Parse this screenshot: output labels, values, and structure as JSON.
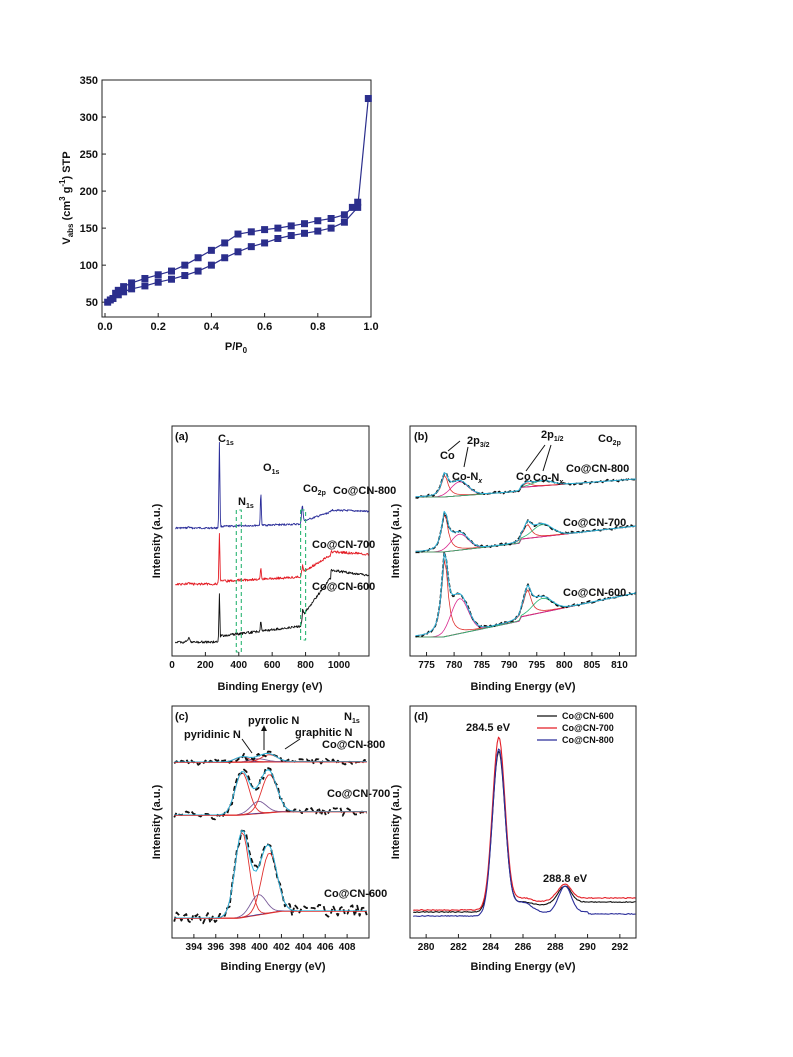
{
  "colors": {
    "bet": "#2b2e8c",
    "cn600": "#111111",
    "cn700": "#e41e26",
    "cn800": "#2b2e9a",
    "guide": "#2bb673",
    "fit_pink": "#d9288f",
    "fit_cyan": "#2ab0d8",
    "fit_red": "#e0312f"
  },
  "chart_data": [
    {
      "panel": "bet",
      "type": "line",
      "xlabel": "P/P",
      "xlabel_sub": "0",
      "ylabel": "V (cm g) STP",
      "ylabel_parts": {
        "v": "V",
        "abs": "abs",
        "open": " (cm",
        "sup3": "3",
        "g": " g",
        "supm1": "-1",
        "close": ") STP"
      },
      "xlim": [
        0,
        1.0
      ],
      "ylim": [
        30,
        350
      ],
      "xticks": [
        "0.0",
        "0.2",
        "0.4",
        "0.6",
        "0.8",
        "1.0"
      ],
      "yticks": [
        "50",
        "100",
        "150",
        "200",
        "250",
        "300",
        "350"
      ],
      "series": [
        {
          "x": [
            0.01,
            0.02,
            0.03,
            0.05,
            0.07,
            0.1,
            0.15,
            0.2,
            0.25,
            0.3,
            0.35,
            0.4,
            0.45,
            0.5,
            0.55,
            0.6,
            0.65,
            0.7,
            0.75,
            0.8,
            0.85,
            0.9,
            0.95
          ],
          "y": [
            50,
            53,
            55,
            60,
            64,
            68,
            72,
            77,
            81,
            86,
            92,
            100,
            110,
            118,
            125,
            130,
            136,
            140,
            143,
            146,
            150,
            158,
            178
          ]
        },
        {
          "x": [
            0.95,
            0.93,
            0.9,
            0.85,
            0.8,
            0.75,
            0.7,
            0.65,
            0.6,
            0.55,
            0.5,
            0.45,
            0.4,
            0.35,
            0.3,
            0.25,
            0.2,
            0.15,
            0.1,
            0.07,
            0.05,
            0.04
          ],
          "y": [
            185,
            178,
            168,
            163,
            160,
            156,
            153,
            150,
            148,
            145,
            142,
            130,
            120,
            110,
            100,
            92,
            87,
            82,
            76,
            71,
            66,
            62
          ]
        },
        {
          "x": [
            0.95,
            0.99
          ],
          "y": [
            178,
            325
          ]
        }
      ]
    },
    {
      "panel": "a",
      "type": "line",
      "panel_label": "(a)",
      "xlabel": "Binding Energy (eV)",
      "ylabel": "Intensity (a.u.)",
      "xlim": [
        0,
        1180
      ],
      "xticks": [
        "0",
        "200",
        "400",
        "600",
        "800",
        "1000"
      ],
      "annotations": {
        "c1s": "C",
        "c1s_sub": "1s",
        "o1s": "O",
        "o1s_sub": "1s",
        "n1s": "N",
        "n1s_sub": "1s",
        "co2p": "Co",
        "co2p_sub": "2p"
      },
      "series": [
        {
          "name": "Co@CN-800",
          "label": "Co@CN-800"
        },
        {
          "name": "Co@CN-700",
          "label": "Co@CN-700"
        },
        {
          "name": "Co@CN-600",
          "label": "Co@CN-600"
        }
      ]
    },
    {
      "panel": "b",
      "type": "line",
      "panel_label": "(b)",
      "xlabel": "Binding Energy (eV)",
      "ylabel": "Intensity (a.u.)",
      "xlim": [
        772,
        813
      ],
      "xticks": [
        "775",
        "780",
        "785",
        "790",
        "795",
        "800",
        "805",
        "810"
      ],
      "corner": "Co",
      "corner_sub": "2p",
      "annotations": {
        "co": "Co",
        "con": "Co-N",
        "x": "x",
        "p32": "2p",
        "p32_sub": "3/2",
        "p12": "2p",
        "p12_sub": "1/2",
        "co2": "Co",
        "con2": "Co-N"
      },
      "series": [
        {
          "name": "Co@CN-800",
          "label": "Co@CN-800"
        },
        {
          "name": "Co@CN-700",
          "label": "Co@CN-700"
        },
        {
          "name": "Co@CN-600",
          "label": "Co@CN-600"
        }
      ]
    },
    {
      "panel": "c",
      "type": "line",
      "panel_label": "(c)",
      "xlabel": "Binding Energy (eV)",
      "ylabel": "Intensity (a.u.)",
      "xlim": [
        392,
        410
      ],
      "xticks": [
        "394",
        "396",
        "398",
        "400",
        "402",
        "404",
        "406",
        "408"
      ],
      "corner": "N",
      "corner_sub": "1s",
      "annotations": {
        "pyridinic": "pyridinic N",
        "pyrrolic": "pyrrolic N",
        "graphitic": "graphitic N"
      },
      "series": [
        {
          "name": "Co@CN-800",
          "label": "Co@CN-800"
        },
        {
          "name": "Co@CN-700",
          "label": "Co@CN-700"
        },
        {
          "name": "Co@CN-600",
          "label": "Co@CN-600"
        }
      ]
    },
    {
      "panel": "d",
      "type": "line",
      "panel_label": "(d)",
      "xlabel": "Binding Energy (eV)",
      "ylabel": "Intensity (a.u.)",
      "xlim": [
        279,
        293
      ],
      "xticks": [
        "280",
        "282",
        "284",
        "286",
        "288",
        "290",
        "292"
      ],
      "peaks": [
        "284.5 eV",
        "288.8 eV"
      ],
      "legend": [
        "Co@CN-600",
        "Co@CN-700",
        "Co@CN-800"
      ],
      "series": [
        {
          "name": "Co@CN-600"
        },
        {
          "name": "Co@CN-700"
        },
        {
          "name": "Co@CN-800"
        }
      ]
    }
  ]
}
